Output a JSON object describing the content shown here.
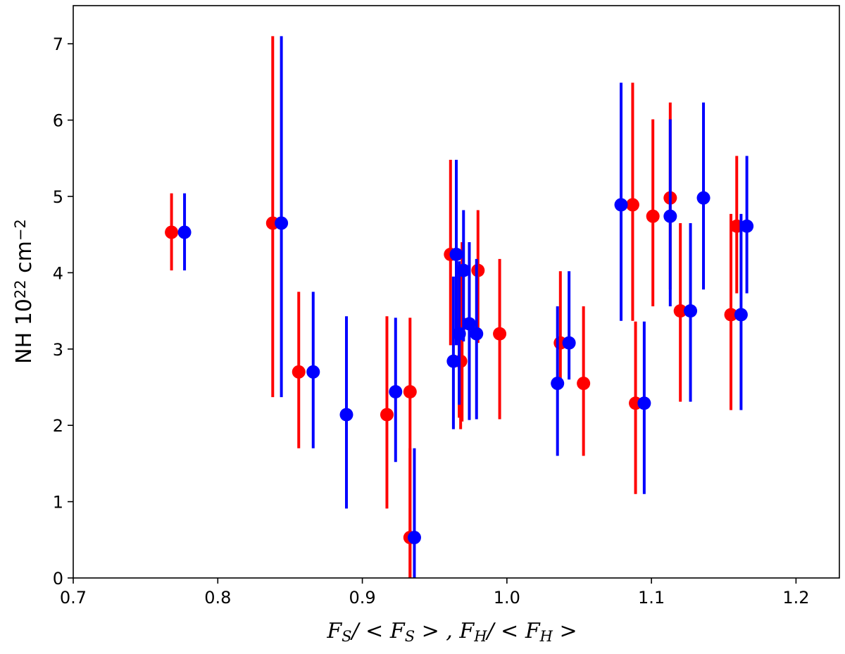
{
  "chart_data": {
    "type": "scatter",
    "title": "",
    "xlabel": {
      "parts": [
        {
          "t": "F"
        },
        {
          "t": "S",
          "sub": true
        },
        {
          "t": "/ < "
        },
        {
          "t": "F"
        },
        {
          "t": "S",
          "sub": true
        },
        {
          "t": " > , "
        },
        {
          "t": "F"
        },
        {
          "t": "H",
          "sub": true
        },
        {
          "t": "/ < "
        },
        {
          "t": "F"
        },
        {
          "t": "H",
          "sub": true
        },
        {
          "t": " >"
        }
      ]
    },
    "ylabel": {
      "parts": [
        {
          "t": "NH 10"
        },
        {
          "t": "22",
          "sup": true
        },
        {
          "t": " cm"
        },
        {
          "t": "−2",
          "sup": true
        }
      ]
    },
    "xlim": [
      0.7,
      1.23
    ],
    "ylim": [
      0,
      7.5
    ],
    "xticks": [
      "0.7",
      "0.8",
      "0.9",
      "1.0",
      "1.1",
      "1.2"
    ],
    "yticks": [
      "0",
      "1",
      "2",
      "3",
      "4",
      "5",
      "6",
      "7"
    ],
    "grid": false,
    "series": [
      {
        "color": "#ff0000",
        "points": [
          {
            "x": 0.768,
            "y": 4.53,
            "lo": 4.03,
            "hi": 5.04
          },
          {
            "x": 0.838,
            "y": 4.65,
            "lo": 2.37,
            "hi": 7.1
          },
          {
            "x": 0.856,
            "y": 2.7,
            "lo": 1.7,
            "hi": 3.75
          },
          {
            "x": 0.917,
            "y": 2.14,
            "lo": 0.91,
            "hi": 3.43
          },
          {
            "x": 0.933,
            "y": 2.44,
            "lo": 0.0,
            "hi": 3.41
          },
          {
            "x": 0.933,
            "y": 0.53,
            "lo": 0.0,
            "hi": 1.7
          },
          {
            "x": 0.961,
            "y": 4.24,
            "lo": 3.05,
            "hi": 5.48
          },
          {
            "x": 0.967,
            "y": 3.2,
            "lo": 2.1,
            "hi": 4.1
          },
          {
            "x": 0.968,
            "y": 2.84,
            "lo": 1.95,
            "hi": 3.95
          },
          {
            "x": 0.969,
            "y": 3.33,
            "lo": 2.05,
            "hi": 4.4
          },
          {
            "x": 0.98,
            "y": 4.03,
            "lo": 3.08,
            "hi": 4.82
          },
          {
            "x": 0.995,
            "y": 3.2,
            "lo": 2.08,
            "hi": 4.18
          },
          {
            "x": 1.037,
            "y": 3.08,
            "lo": 2.6,
            "hi": 4.02
          },
          {
            "x": 1.053,
            "y": 2.55,
            "lo": 1.6,
            "hi": 3.56
          },
          {
            "x": 1.087,
            "y": 4.89,
            "lo": 3.37,
            "hi": 6.49
          },
          {
            "x": 1.089,
            "y": 2.29,
            "lo": 1.1,
            "hi": 3.36
          },
          {
            "x": 1.101,
            "y": 4.74,
            "lo": 3.56,
            "hi": 6.01
          },
          {
            "x": 1.113,
            "y": 4.98,
            "lo": 3.78,
            "hi": 6.23
          },
          {
            "x": 1.12,
            "y": 3.5,
            "lo": 2.31,
            "hi": 4.65
          },
          {
            "x": 1.155,
            "y": 3.45,
            "lo": 2.2,
            "hi": 4.77
          },
          {
            "x": 1.159,
            "y": 4.61,
            "lo": 3.73,
            "hi": 5.53
          }
        ]
      },
      {
        "color": "#0000ff",
        "points": [
          {
            "x": 0.777,
            "y": 4.53,
            "lo": 4.03,
            "hi": 5.04
          },
          {
            "x": 0.844,
            "y": 4.65,
            "lo": 2.37,
            "hi": 7.1
          },
          {
            "x": 0.866,
            "y": 2.7,
            "lo": 1.7,
            "hi": 3.75
          },
          {
            "x": 0.889,
            "y": 2.14,
            "lo": 0.91,
            "hi": 3.43
          },
          {
            "x": 0.923,
            "y": 2.44,
            "lo": 1.52,
            "hi": 3.41
          },
          {
            "x": 0.936,
            "y": 0.53,
            "lo": 0.0,
            "hi": 1.7
          },
          {
            "x": 0.963,
            "y": 2.84,
            "lo": 1.95,
            "hi": 3.95
          },
          {
            "x": 0.965,
            "y": 4.24,
            "lo": 3.05,
            "hi": 5.48
          },
          {
            "x": 0.967,
            "y": 3.2,
            "lo": 2.27,
            "hi": 4.15
          },
          {
            "x": 0.97,
            "y": 4.03,
            "lo": 3.1,
            "hi": 4.82
          },
          {
            "x": 0.974,
            "y": 3.33,
            "lo": 2.07,
            "hi": 4.4
          },
          {
            "x": 0.979,
            "y": 3.2,
            "lo": 2.08,
            "hi": 4.18
          },
          {
            "x": 1.035,
            "y": 2.55,
            "lo": 1.6,
            "hi": 3.56
          },
          {
            "x": 1.043,
            "y": 3.08,
            "lo": 2.6,
            "hi": 4.02
          },
          {
            "x": 1.079,
            "y": 4.89,
            "lo": 3.37,
            "hi": 6.49
          },
          {
            "x": 1.095,
            "y": 2.29,
            "lo": 1.1,
            "hi": 3.36
          },
          {
            "x": 1.113,
            "y": 4.74,
            "lo": 3.56,
            "hi": 6.01
          },
          {
            "x": 1.127,
            "y": 3.5,
            "lo": 2.31,
            "hi": 4.65
          },
          {
            "x": 1.136,
            "y": 4.98,
            "lo": 3.78,
            "hi": 6.23
          },
          {
            "x": 1.162,
            "y": 3.45,
            "lo": 2.2,
            "hi": 4.77
          },
          {
            "x": 1.166,
            "y": 4.61,
            "lo": 3.73,
            "hi": 5.53
          }
        ]
      }
    ]
  }
}
